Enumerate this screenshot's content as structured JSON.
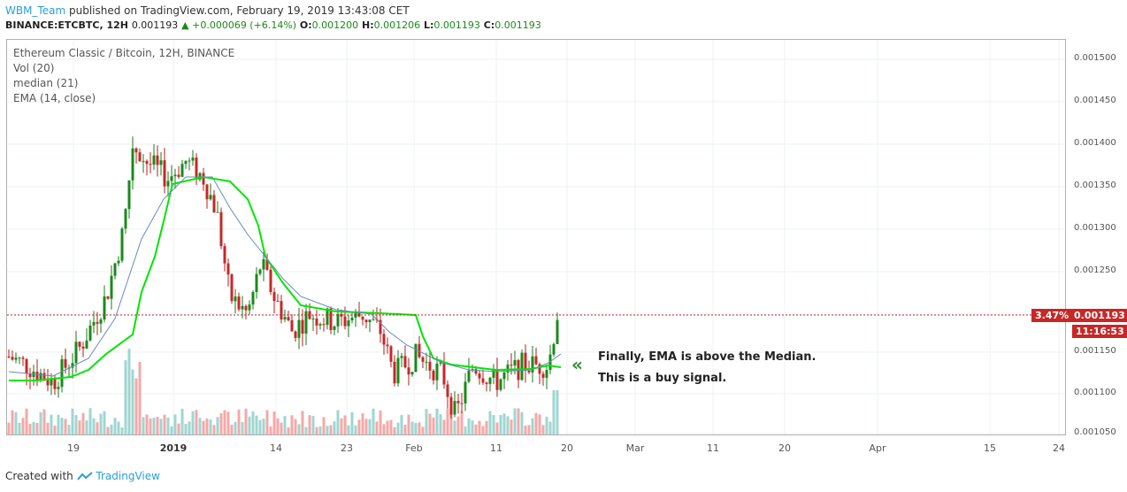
{
  "header": {
    "user": "WBM_Team",
    "published": "published on TradingView.com, February 19, 2019 13:43:08 CET",
    "symbol": "BINANCE:ETCBTC, 12H",
    "last": "0.001193",
    "change": "▲ +0.000069 (+6.14%)",
    "o_label": "O:",
    "o": "0.001200",
    "h_label": "H:",
    "h": "0.001206",
    "l_label": "L:",
    "l": "0.001193",
    "c_label": "C:",
    "c": "0.001193"
  },
  "legend": {
    "title": "Ethereum Classic / Bitcoin, 12H, BINANCE",
    "vol": "Vol (20)",
    "median": "median (21)",
    "ema": "EMA (14, close)"
  },
  "annotation": {
    "line1": "Finally, EMA is above the Median.",
    "line2": "This is a buy signal."
  },
  "price_axis": [
    "0.001500",
    "0.001450",
    "0.001400",
    "0.001350",
    "0.001300",
    "0.001250",
    "0.001200",
    "0.001150",
    "0.001100",
    "0.001050"
  ],
  "price_tag": {
    "pct": "3.47%",
    "price": "0.001193",
    "countdown": "11:16:53"
  },
  "date_axis": [
    "19",
    "2019",
    "14",
    "23",
    "Feb",
    "11",
    "20",
    "Mar",
    "11",
    "20",
    "Apr",
    "15",
    "24"
  ],
  "footer": {
    "created": "Created with",
    "brand": "TradingView"
  },
  "colors": {
    "up": "#26a69a",
    "down": "#ef5350",
    "median": "#00e600",
    "ema": "#6a8ab8",
    "accent": "#2a9fd6"
  },
  "icons": [
    "tradingview-logo-icon",
    "double-chevron-left-icon"
  ]
}
